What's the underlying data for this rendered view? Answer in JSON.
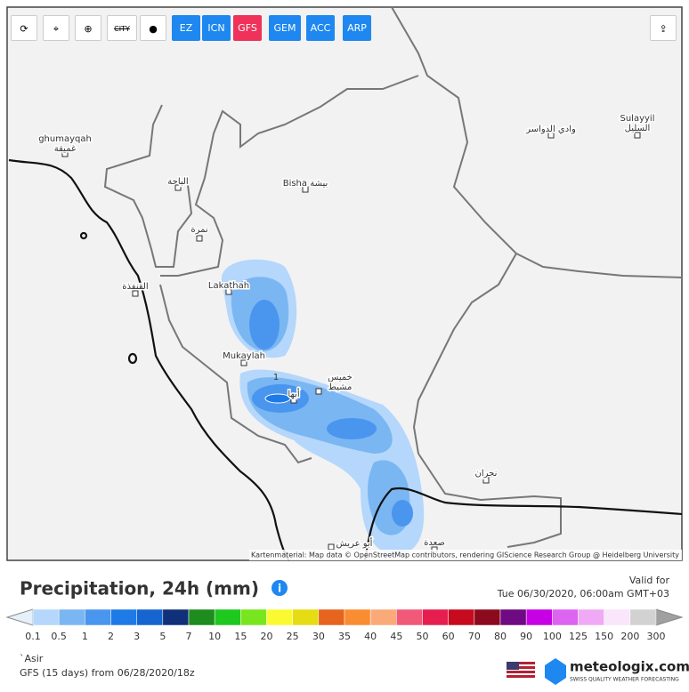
{
  "toolbar": {
    "city_icon": "CITY",
    "models": [
      "EZ",
      "ICN",
      "GFS",
      "GEM",
      "ACC",
      "ARP"
    ]
  },
  "map": {
    "places": [
      {
        "lines": [
          "ghumayqah",
          "غميقة"
        ]
      },
      {
        "lines": [
          "الباحة"
        ]
      },
      {
        "lines": [
          "Bisha بيشة"
        ]
      },
      {
        "lines": [
          "وادي الدواسر"
        ]
      },
      {
        "lines": [
          "Sulayyil",
          "السليل"
        ]
      },
      {
        "lines": [
          "نمرة"
        ]
      },
      {
        "lines": [
          "القنفذة"
        ]
      },
      {
        "lines": [
          "Lakathah"
        ]
      },
      {
        "lines": [
          "Mukaylah"
        ]
      },
      {
        "lines": [
          "خميس",
          "مشيط"
        ]
      },
      {
        "lines": [
          "أبها"
        ]
      },
      {
        "lines": [
          "نجران"
        ]
      },
      {
        "lines": [
          "صعدة"
        ]
      },
      {
        "lines": [
          "أبو عريش"
        ]
      }
    ],
    "contour_label": "1",
    "attribution": "Kartenmaterial: Map data © OpenStreetMap contributors, rendering GIScience Research Group @ Heidelberg University"
  },
  "footer": {
    "title": "Precipitation, 24h (mm)",
    "valid_for_label": "Valid for",
    "valid_time": "Tue 06/30/2020, 06:00am GMT+03",
    "region": "`Asir",
    "model_run": "GFS (15 days) from 06/28/2020/18z",
    "brand": "meteologix.com",
    "tagline": "SWISS QUALITY WEATHER FORECASTING"
  },
  "legend": {
    "thresholds": [
      0.1,
      0.5,
      1,
      2,
      3,
      5,
      7,
      10,
      15,
      20,
      25,
      30,
      35,
      40,
      45,
      50,
      60,
      70,
      80,
      90,
      100,
      125,
      150,
      200,
      300
    ],
    "colors": [
      "#b4d7fb",
      "#7ab6f2",
      "#4a96ee",
      "#1e7ae6",
      "#1664d0",
      "#10317a",
      "#1e8c1e",
      "#1ec81e",
      "#78e61e",
      "#fafa32",
      "#e6dc14",
      "#e6641e",
      "#fa8c32",
      "#faaa78",
      "#f05a78",
      "#e61e50",
      "#c80a1e",
      "#8c0a1e",
      "#6e0a82",
      "#c800e6",
      "#dc64f0",
      "#f0aaf5",
      "#fae6fa",
      "#d2d2d2"
    ],
    "below_color": "#e6f0fa",
    "above_color": "#a0a0a0"
  }
}
